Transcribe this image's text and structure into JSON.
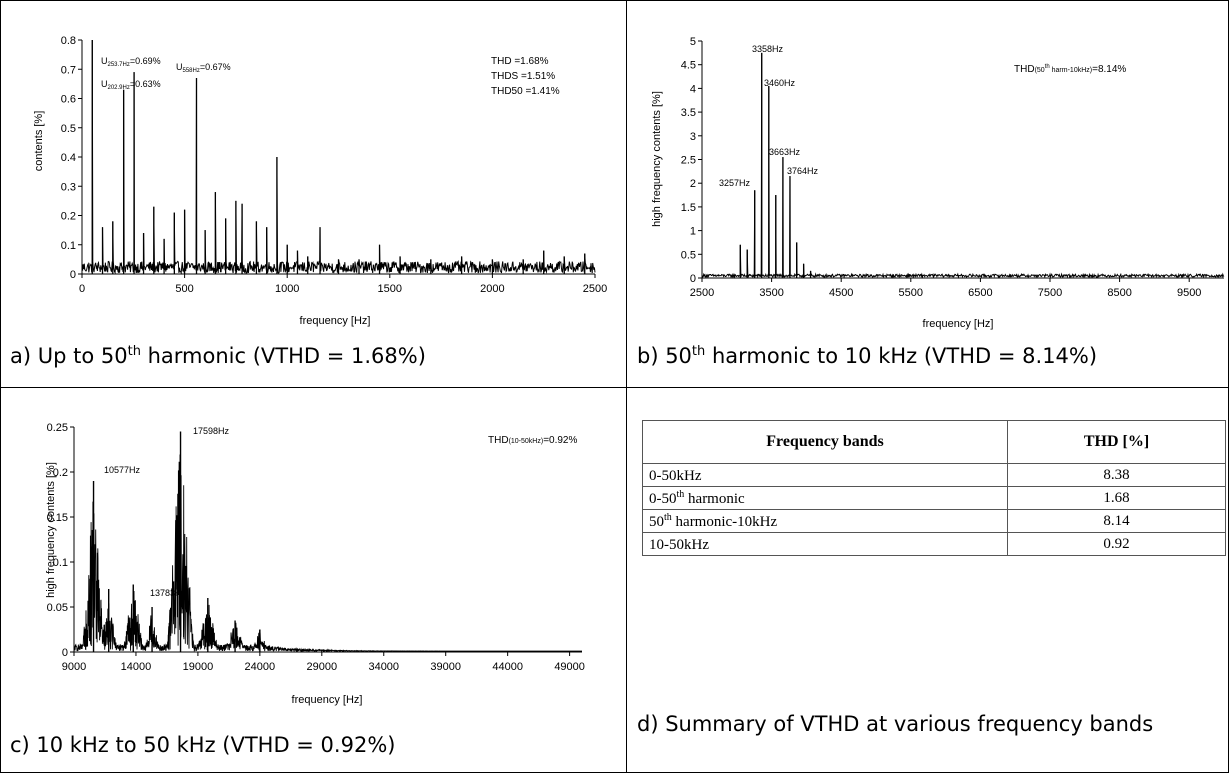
{
  "chart_data": [
    {
      "type": "line",
      "xlabel": "frequency [Hz]",
      "ylabel": "contents [%]",
      "xlim": [
        0,
        2500
      ],
      "ylim": [
        0,
        0.8
      ],
      "xticks": [
        "0",
        "500",
        "1000",
        "1500",
        "2000",
        "2500"
      ],
      "yticks": [
        "0",
        "0.1",
        "0.2",
        "0.3",
        "0.4",
        "0.5",
        "0.6",
        "0.7",
        "0.8"
      ],
      "peaks": [
        {
          "x": 50,
          "y": 0.8
        },
        {
          "x": 100,
          "y": 0.16
        },
        {
          "x": 150,
          "y": 0.18
        },
        {
          "x": 202.9,
          "y": 0.63
        },
        {
          "x": 253.7,
          "y": 0.69
        },
        {
          "x": 300,
          "y": 0.14
        },
        {
          "x": 350,
          "y": 0.23
        },
        {
          "x": 400,
          "y": 0.12
        },
        {
          "x": 450,
          "y": 0.21
        },
        {
          "x": 500,
          "y": 0.22
        },
        {
          "x": 558,
          "y": 0.67
        },
        {
          "x": 600,
          "y": 0.15
        },
        {
          "x": 650,
          "y": 0.28
        },
        {
          "x": 700,
          "y": 0.19
        },
        {
          "x": 750,
          "y": 0.25
        },
        {
          "x": 780,
          "y": 0.24
        },
        {
          "x": 850,
          "y": 0.18
        },
        {
          "x": 900,
          "y": 0.16
        },
        {
          "x": 950,
          "y": 0.4
        },
        {
          "x": 1000,
          "y": 0.1
        },
        {
          "x": 1050,
          "y": 0.08
        },
        {
          "x": 1100,
          "y": 0.06
        },
        {
          "x": 1160,
          "y": 0.16
        },
        {
          "x": 1250,
          "y": 0.05
        },
        {
          "x": 1350,
          "y": 0.05
        },
        {
          "x": 1450,
          "y": 0.1
        },
        {
          "x": 1550,
          "y": 0.06
        },
        {
          "x": 1700,
          "y": 0.05
        },
        {
          "x": 1850,
          "y": 0.06
        },
        {
          "x": 2000,
          "y": 0.05
        },
        {
          "x": 2150,
          "y": 0.05
        },
        {
          "x": 2250,
          "y": 0.08
        },
        {
          "x": 2350,
          "y": 0.06
        },
        {
          "x": 2450,
          "y": 0.07
        }
      ],
      "peak_labels": [
        {
          "prefix": "U",
          "sub": "253.7Hz",
          "suffix": "=0.69%"
        },
        {
          "prefix": "U",
          "sub": "202.9Hz",
          "suffix": "=0.63%"
        },
        {
          "prefix": "U",
          "sub": "558Hz",
          "suffix": "=0.67%"
        }
      ],
      "annotations": [
        "THD =1.68%",
        "THDS =1.51%",
        "THD50 =1.41%"
      ]
    },
    {
      "type": "line",
      "xlabel": "frequency [Hz]",
      "ylabel": "high frequency contents [%]",
      "xlim": [
        2500,
        10000
      ],
      "ylim": [
        0,
        5
      ],
      "xticks": [
        "2500",
        "3500",
        "4500",
        "5500",
        "6500",
        "7500",
        "8500",
        "9500"
      ],
      "yticks": [
        "0",
        "0.5",
        "1",
        "1.5",
        "2",
        "2.5",
        "3",
        "3.5",
        "4",
        "4.5",
        "5"
      ],
      "peaks": [
        {
          "x": 3050,
          "y": 0.7
        },
        {
          "x": 3150,
          "y": 0.6
        },
        {
          "x": 3257,
          "y": 1.85
        },
        {
          "x": 3358,
          "y": 4.75
        },
        {
          "x": 3460,
          "y": 4.05
        },
        {
          "x": 3560,
          "y": 1.75
        },
        {
          "x": 3663,
          "y": 2.55
        },
        {
          "x": 3764,
          "y": 2.15
        },
        {
          "x": 3860,
          "y": 0.75
        },
        {
          "x": 3960,
          "y": 0.3
        },
        {
          "x": 4060,
          "y": 0.15
        }
      ],
      "peak_labels": [
        "3358Hz",
        "3460Hz",
        "3663Hz",
        "3764Hz",
        "3257Hz"
      ],
      "annotation": {
        "prefix": "THD",
        "sub": "(50",
        "sup": "th",
        "sub2": " harm-10kHz)",
        "suffix": "=8.14%"
      }
    },
    {
      "type": "line",
      "xlabel": "frequency [Hz]",
      "ylabel": "high frequency contents [%]",
      "xlim": [
        9000,
        50000
      ],
      "ylim": [
        0,
        0.25
      ],
      "xticks": [
        "9000",
        "14000",
        "19000",
        "24000",
        "29000",
        "34000",
        "39000",
        "44000",
        "49000"
      ],
      "yticks": [
        "0",
        "0.05",
        "0.1",
        "0.15",
        "0.2",
        "0.25"
      ],
      "clusters": [
        {
          "center": 10577,
          "width": 900,
          "peak": 0.19
        },
        {
          "center": 11800,
          "width": 700,
          "peak": 0.07
        },
        {
          "center": 13783,
          "width": 900,
          "peak": 0.075
        },
        {
          "center": 15300,
          "width": 600,
          "peak": 0.05
        },
        {
          "center": 17598,
          "width": 1100,
          "peak": 0.245
        },
        {
          "center": 19800,
          "width": 900,
          "peak": 0.06
        },
        {
          "center": 22000,
          "width": 900,
          "peak": 0.035
        },
        {
          "center": 24000,
          "width": 700,
          "peak": 0.025
        }
      ],
      "peak_labels": [
        "17598Hz",
        "10577Hz",
        "13783Hz"
      ],
      "annotation": {
        "prefix": "THD",
        "sub": "(10-50kHz)",
        "suffix": "=0.92%"
      }
    }
  ],
  "captions": {
    "a": {
      "pre": "a)  Up to 50",
      "sup": "th",
      "post": " harmonic (VTHD = 1.68%)"
    },
    "b": {
      "pre": "b)  50",
      "sup": "th",
      "post": " harmonic to 10 kHz (VTHD = 8.14%)"
    },
    "c": {
      "pre": "c)  10 kHz to 50 kHz (VTHD = 0.92%)"
    },
    "d": {
      "pre": "d)  Summary of VTHD at various frequency bands"
    }
  },
  "table": {
    "headers": [
      "Frequency bands",
      "THD [%]"
    ],
    "rows": [
      {
        "band": "0-50kHz",
        "band_sup": "",
        "band_post": "",
        "thd": "8.38"
      },
      {
        "band": "0-50",
        "band_sup": "th",
        "band_post": " harmonic",
        "thd": "1.68"
      },
      {
        "band": "50",
        "band_sup": "th",
        "band_post": " harmonic-10kHz",
        "thd": "8.14"
      },
      {
        "band": "10-50kHz",
        "band_sup": "",
        "band_post": "",
        "thd": "0.92"
      }
    ]
  }
}
